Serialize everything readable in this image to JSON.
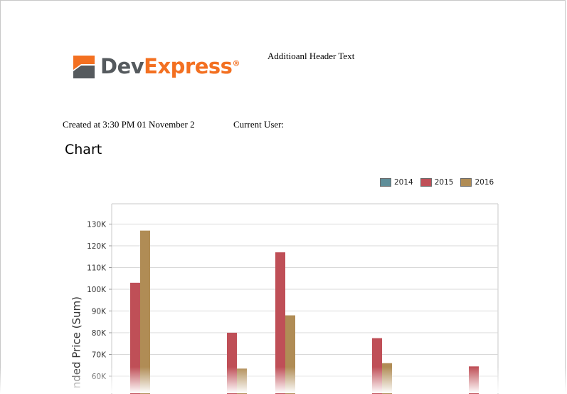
{
  "header": {
    "logo": {
      "dev": "Dev",
      "express": "Express",
      "reg": "®"
    },
    "additional_text": "Additioanl Header Text",
    "created": "Created at 3:30 PM 01 November 2",
    "current_user": "Current User:"
  },
  "chart_title": "Chart",
  "chart_data": {
    "type": "bar",
    "title": "Chart",
    "ylabel": "nded Price (Sum)",
    "ylim": [
      55000,
      135000
    ],
    "yticks": [
      60000,
      70000,
      80000,
      90000,
      100000,
      110000,
      120000,
      130000
    ],
    "ytick_labels": [
      "60K",
      "70K",
      "80K",
      "90K",
      "100K",
      "110K",
      "120K",
      "130K"
    ],
    "legend_position": "top-right",
    "grid": true,
    "series": [
      {
        "name": "2014",
        "color": "#5f8e99",
        "values": [
          null,
          null,
          null,
          null,
          null
        ]
      },
      {
        "name": "2015",
        "color": "#bf4f57",
        "values": [
          103000,
          80000,
          117000,
          77500,
          64500
        ]
      },
      {
        "name": "2016",
        "color": "#b08c55",
        "values": [
          127000,
          63500,
          88000,
          66000,
          null
        ]
      }
    ],
    "groups": 5
  }
}
